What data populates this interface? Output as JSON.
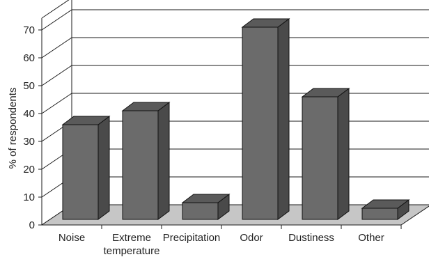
{
  "chart_data": {
    "type": "bar",
    "title": "",
    "xlabel": "",
    "ylabel": "% of respondents",
    "categories": [
      "Noise",
      "Extreme temperature",
      "Precipitation",
      "Odor",
      "Dustiness",
      "Other"
    ],
    "category_label_lines": [
      [
        "Noise"
      ],
      [
        "Extreme",
        "temperature"
      ],
      [
        "Precipitation"
      ],
      [
        "Odor"
      ],
      [
        "Dustiness"
      ],
      [
        "Other"
      ]
    ],
    "values": [
      34,
      39,
      6,
      69,
      44,
      4
    ],
    "ylim": [
      0,
      70
    ],
    "yticks": [
      0,
      10,
      20,
      30,
      40,
      50,
      60,
      70
    ],
    "grid": true,
    "legend": "none",
    "style": "3d",
    "colors": {
      "bar_front": "#6b6b6b",
      "bar_side": "#4a4a4a",
      "bar_top": "#5a5a5a",
      "floor": "#c6c6c6",
      "grid": "#1a1a1a"
    }
  }
}
